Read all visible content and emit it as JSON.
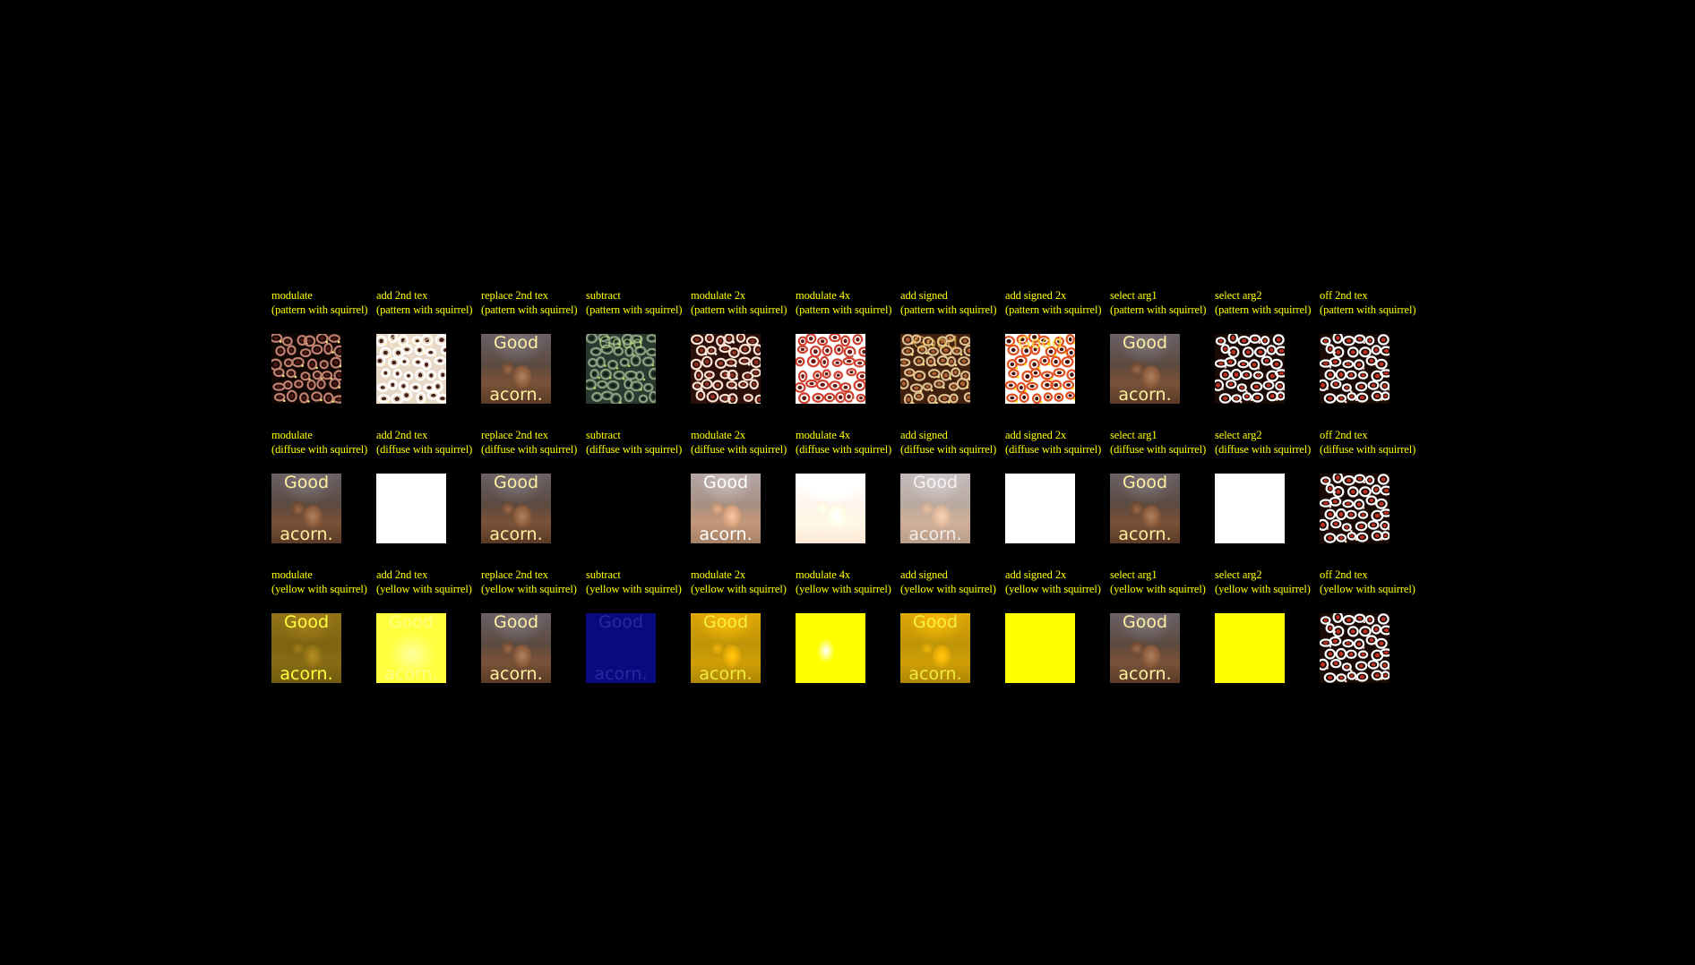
{
  "image_words": [
    "Good",
    "acorn."
  ],
  "colors": {
    "background": "#000000",
    "label": "#ffff00",
    "yellow": "#ffff00",
    "blue": "#0a0a80"
  },
  "rows": [
    {
      "key": "pattern",
      "cells": [
        {
          "line1": "modulate",
          "line2": "(pattern with squirrel)",
          "look": "pattern-dark"
        },
        {
          "line1": "add 2nd tex",
          "line2": "(pattern with squirrel)",
          "look": "pattern-light"
        },
        {
          "line1": "replace 2nd tex",
          "line2": "(pattern with squirrel)",
          "look": "squirrel"
        },
        {
          "line1": "subtract",
          "line2": "(pattern with squirrel)",
          "look": "pattern-subtract"
        },
        {
          "line1": "modulate 2x",
          "line2": "(pattern with squirrel)",
          "look": "pattern-mid"
        },
        {
          "line1": "modulate 4x",
          "line2": "(pattern with squirrel)",
          "look": "pattern-bright"
        },
        {
          "line1": "add signed",
          "line2": "(pattern with squirrel)",
          "look": "pattern-signed"
        },
        {
          "line1": "add signed 2x",
          "line2": "(pattern with squirrel)",
          "look": "pattern-signed2x"
        },
        {
          "line1": "select arg1",
          "line2": "(pattern with squirrel)",
          "look": "squirrel"
        },
        {
          "line1": "select arg2",
          "line2": "(pattern with squirrel)",
          "look": "pattern"
        },
        {
          "line1": "off 2nd tex",
          "line2": "(pattern with squirrel)",
          "look": "pattern"
        }
      ]
    },
    {
      "key": "diffuse",
      "cells": [
        {
          "line1": "modulate",
          "line2": "(diffuse with squirrel)",
          "look": "squirrel"
        },
        {
          "line1": "add 2nd tex",
          "line2": "(diffuse with squirrel)",
          "look": "white"
        },
        {
          "line1": "replace 2nd tex",
          "line2": "(diffuse with squirrel)",
          "look": "squirrel"
        },
        {
          "line1": "subtract",
          "line2": "(diffuse with squirrel)",
          "look": "black"
        },
        {
          "line1": "modulate 2x",
          "line2": "(diffuse with squirrel)",
          "look": "squirrel-light"
        },
        {
          "line1": "modulate 4x",
          "line2": "(diffuse with squirrel)",
          "look": "squirrel-washed"
        },
        {
          "line1": "add signed",
          "line2": "(diffuse with squirrel)",
          "look": "squirrel-faded"
        },
        {
          "line1": "add signed 2x",
          "line2": "(diffuse with squirrel)",
          "look": "white"
        },
        {
          "line1": "select arg1",
          "line2": "(diffuse with squirrel)",
          "look": "squirrel"
        },
        {
          "line1": "select arg2",
          "line2": "(diffuse with squirrel)",
          "look": "white"
        },
        {
          "line1": "off 2nd tex",
          "line2": "(diffuse with squirrel)",
          "look": "pattern"
        }
      ]
    },
    {
      "key": "yellow",
      "cells": [
        {
          "line1": "modulate",
          "line2": "(yellow with squirrel)",
          "look": "squirrel-yellow"
        },
        {
          "line1": "add 2nd tex",
          "line2": "(yellow with squirrel)",
          "look": "yellow-light"
        },
        {
          "line1": "replace 2nd tex",
          "line2": "(yellow with squirrel)",
          "look": "squirrel"
        },
        {
          "line1": "subtract",
          "line2": "(yellow with squirrel)",
          "look": "blue"
        },
        {
          "line1": "modulate 2x",
          "line2": "(yellow with squirrel)",
          "look": "squirrel-yellow-bright"
        },
        {
          "line1": "modulate 4x",
          "line2": "(yellow with squirrel)",
          "look": "yellow-washed"
        },
        {
          "line1": "add signed",
          "line2": "(yellow with squirrel)",
          "look": "squirrel-yellow-bright"
        },
        {
          "line1": "add signed 2x",
          "line2": "(yellow with squirrel)",
          "look": "yellow"
        },
        {
          "line1": "select arg1",
          "line2": "(yellow with squirrel)",
          "look": "squirrel"
        },
        {
          "line1": "select arg2",
          "line2": "(yellow with squirrel)",
          "look": "yellow"
        },
        {
          "line1": "off 2nd tex",
          "line2": "(yellow with squirrel)",
          "look": "pattern"
        }
      ]
    }
  ]
}
